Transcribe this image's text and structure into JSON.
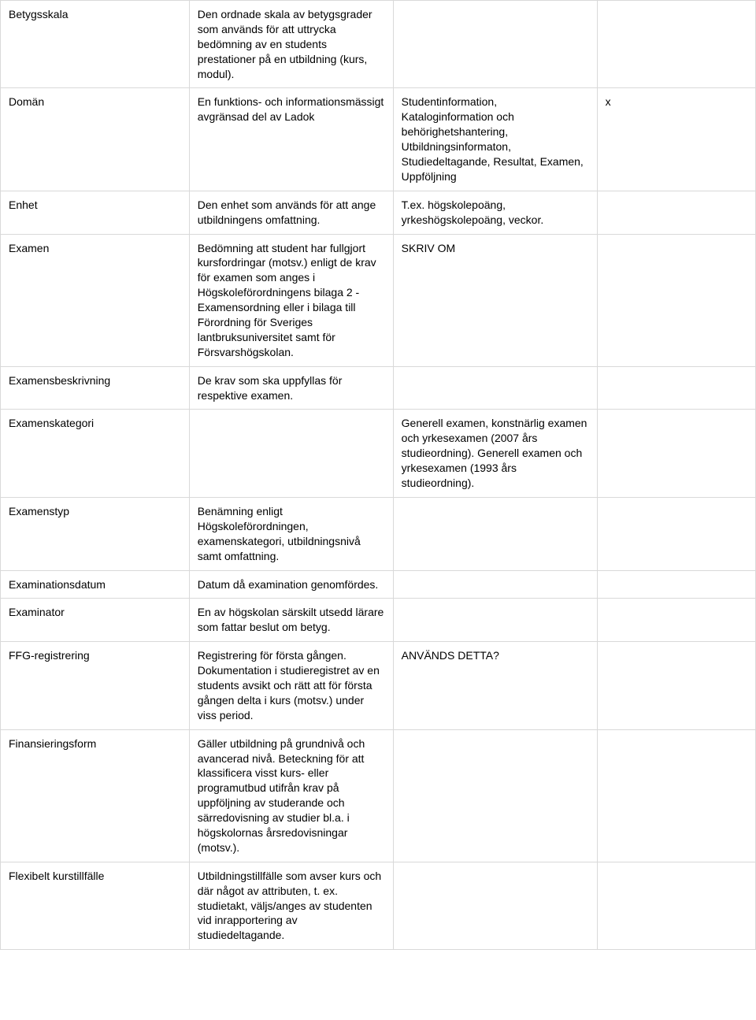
{
  "table": {
    "border_color": "#d9d9d9",
    "background_color": "#ffffff",
    "text_color": "#000000",
    "font_size": 14,
    "column_widths_pct": [
      25,
      27,
      27,
      21
    ],
    "rows": [
      {
        "term": "Betygsskala",
        "definition": "Den ordnade skala av betygsgrader som används för att uttrycka bedömning av en students prestationer på en utbildning (kurs, modul).",
        "example": "",
        "flag": ""
      },
      {
        "term": "Domän",
        "definition": "En funktions- och informationsmässigt avgränsad del av Ladok",
        "example": "Studentinformation, Kataloginformation och behörighetshantering, Utbildningsinformaton, Studiedeltagande, Resultat, Examen, Uppföljning",
        "flag": "x"
      },
      {
        "term": "Enhet",
        "definition": "Den enhet som används för att ange utbildningens omfattning.",
        "example": " T.ex. högskolepoäng, yrkeshögskolepoäng, veckor.",
        "flag": ""
      },
      {
        "term": "Examen",
        "definition": "Bedömning att student har fullgjort kursfordringar (motsv.) enligt de krav för examen som anges i Högskoleförordningens bilaga 2 - Examensordning eller i bilaga till Förordning för Sveriges lantbruksuniversitet samt för Försvarshögskolan.",
        "example": "SKRIV OM",
        "flag": ""
      },
      {
        "term": "Examensbeskrivning",
        "definition": "De krav som ska uppfyllas för respektive examen.",
        "example": "",
        "flag": ""
      },
      {
        "term": "Examenskategori",
        "definition": "",
        "example": "Generell examen, konstnärlig examen och yrkesexamen (2007 års studieordning). Generell examen och yrkesexamen (1993 års studieordning).",
        "flag": ""
      },
      {
        "term": "Examenstyp",
        "definition": "Benämning enligt Högskoleförordningen, examenskategori, utbildningsnivå samt omfattning.",
        "example": "",
        "flag": ""
      },
      {
        "term": "Examinationsdatum",
        "definition": "Datum då examination genomfördes.",
        "example": "",
        "flag": ""
      },
      {
        "term": "Examinator",
        "definition": "En av högskolan särskilt utsedd lärare som fattar beslut om betyg.",
        "example": "",
        "flag": ""
      },
      {
        "term": "FFG-registrering",
        "definition": "Registrering för första gången. Dokumentation i studieregistret av en students avsikt och rätt att för första gången delta i kurs (motsv.) under viss period.",
        "example": "ANVÄNDS DETTA?",
        "flag": ""
      },
      {
        "term": "Finansieringsform",
        "definition": "Gäller utbildning på grundnivå och avancerad nivå. Beteckning för att klassificera visst kurs- eller programutbud utifrån krav på uppföljning av studerande och särredovisning av studier bl.a. i högskolornas årsredovisningar (motsv.).",
        "example": "",
        "flag": ""
      },
      {
        "term": "Flexibelt kurstillfälle",
        "definition": "Utbildningstillfälle som avser kurs och där något av attributen, t. ex. studietakt, väljs/anges av studenten vid inrapportering av studiedeltagande.",
        "example": "",
        "flag": ""
      }
    ]
  }
}
